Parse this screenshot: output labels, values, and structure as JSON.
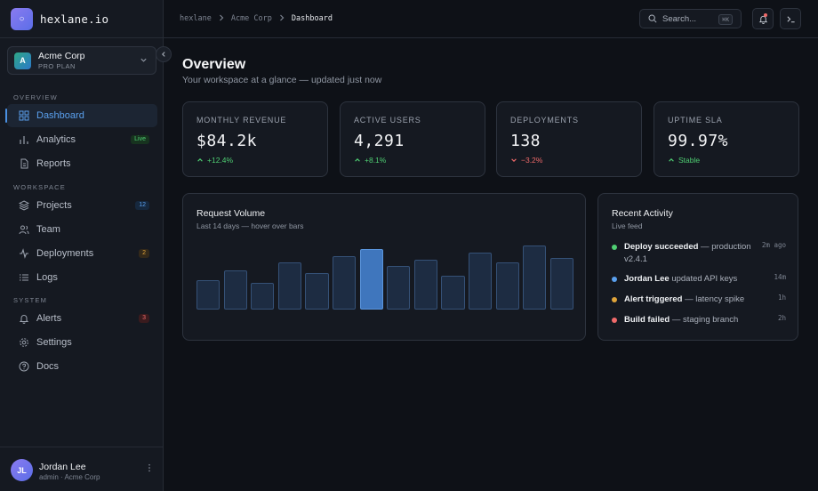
{
  "brand": {
    "logo_glyph": "○",
    "name": "hexlane.io"
  },
  "workspace": {
    "initial": "A",
    "name": "Acme Corp",
    "plan": "PRO PLAN"
  },
  "sidebar": {
    "sections": [
      {
        "label": "OVERVIEW"
      },
      {
        "label": "WORKSPACE"
      },
      {
        "label": "SYSTEM"
      }
    ],
    "items": [
      {
        "label": "Dashboard",
        "icon": "grid-icon",
        "active": true
      },
      {
        "label": "Analytics",
        "icon": "bar-chart-icon",
        "badge": "Live"
      },
      {
        "label": "Reports",
        "icon": "document-icon"
      },
      {
        "label": "Projects",
        "icon": "layers-icon",
        "badge": "12"
      },
      {
        "label": "Team",
        "icon": "users-icon"
      },
      {
        "label": "Deployments",
        "icon": "activity-icon",
        "badge": "2"
      },
      {
        "label": "Logs",
        "icon": "list-icon"
      },
      {
        "label": "Alerts",
        "icon": "bell-icon",
        "badge": "3"
      },
      {
        "label": "Settings",
        "icon": "gear-icon"
      },
      {
        "label": "Docs",
        "icon": "help-circle-icon"
      }
    ]
  },
  "user": {
    "initials": "JL",
    "name": "Jordan Lee",
    "role": "admin · Acme Corp"
  },
  "topbar": {
    "breadcrumb": [
      "hexlane",
      "Acme Corp",
      "Dashboard"
    ],
    "search_label": "Search...",
    "search_shortcut": "⌘K"
  },
  "page": {
    "title": "Overview",
    "subtitle": "Your workspace at a glance — updated just now"
  },
  "kpis": [
    {
      "label": "MONTHLY REVENUE",
      "value": "$84.2k",
      "delta": "+12.4%",
      "trend": "up"
    },
    {
      "label": "ACTIVE USERS",
      "value": "4,291",
      "delta": "+8.1%",
      "trend": "up"
    },
    {
      "label": "DEPLOYMENTS",
      "value": "138",
      "delta": "−3.2%",
      "trend": "down"
    },
    {
      "label": "UPTIME SLA",
      "value": "99.97%",
      "delta": "Stable",
      "trend": "up"
    }
  ],
  "request_volume": {
    "title": "Request Volume",
    "subtitle": "Last 14 days — hover over bars",
    "highlight_index": 6
  },
  "chart_data": {
    "type": "bar",
    "values": [
      45,
      60,
      40,
      71,
      56,
      81,
      92,
      66,
      76,
      51,
      87,
      71,
      97,
      79
    ],
    "ylim": [
      0,
      100
    ]
  },
  "activity": {
    "title": "Recent Activity",
    "subtitle": "Live feed",
    "items": [
      {
        "strong": "Deploy succeeded",
        "rest": " — production v2.4.1",
        "time": "2m ago",
        "color": "#4fcf73"
      },
      {
        "strong": "Jordan Lee",
        "rest": " updated API keys",
        "time": "14m",
        "color": "#5aa0ee"
      },
      {
        "strong": "Alert triggered",
        "rest": " — latency spike",
        "time": "1h",
        "color": "#e0a43a"
      },
      {
        "strong": "Build failed",
        "rest": " — staging branch",
        "time": "2h",
        "color": "#f06a6a"
      }
    ]
  }
}
